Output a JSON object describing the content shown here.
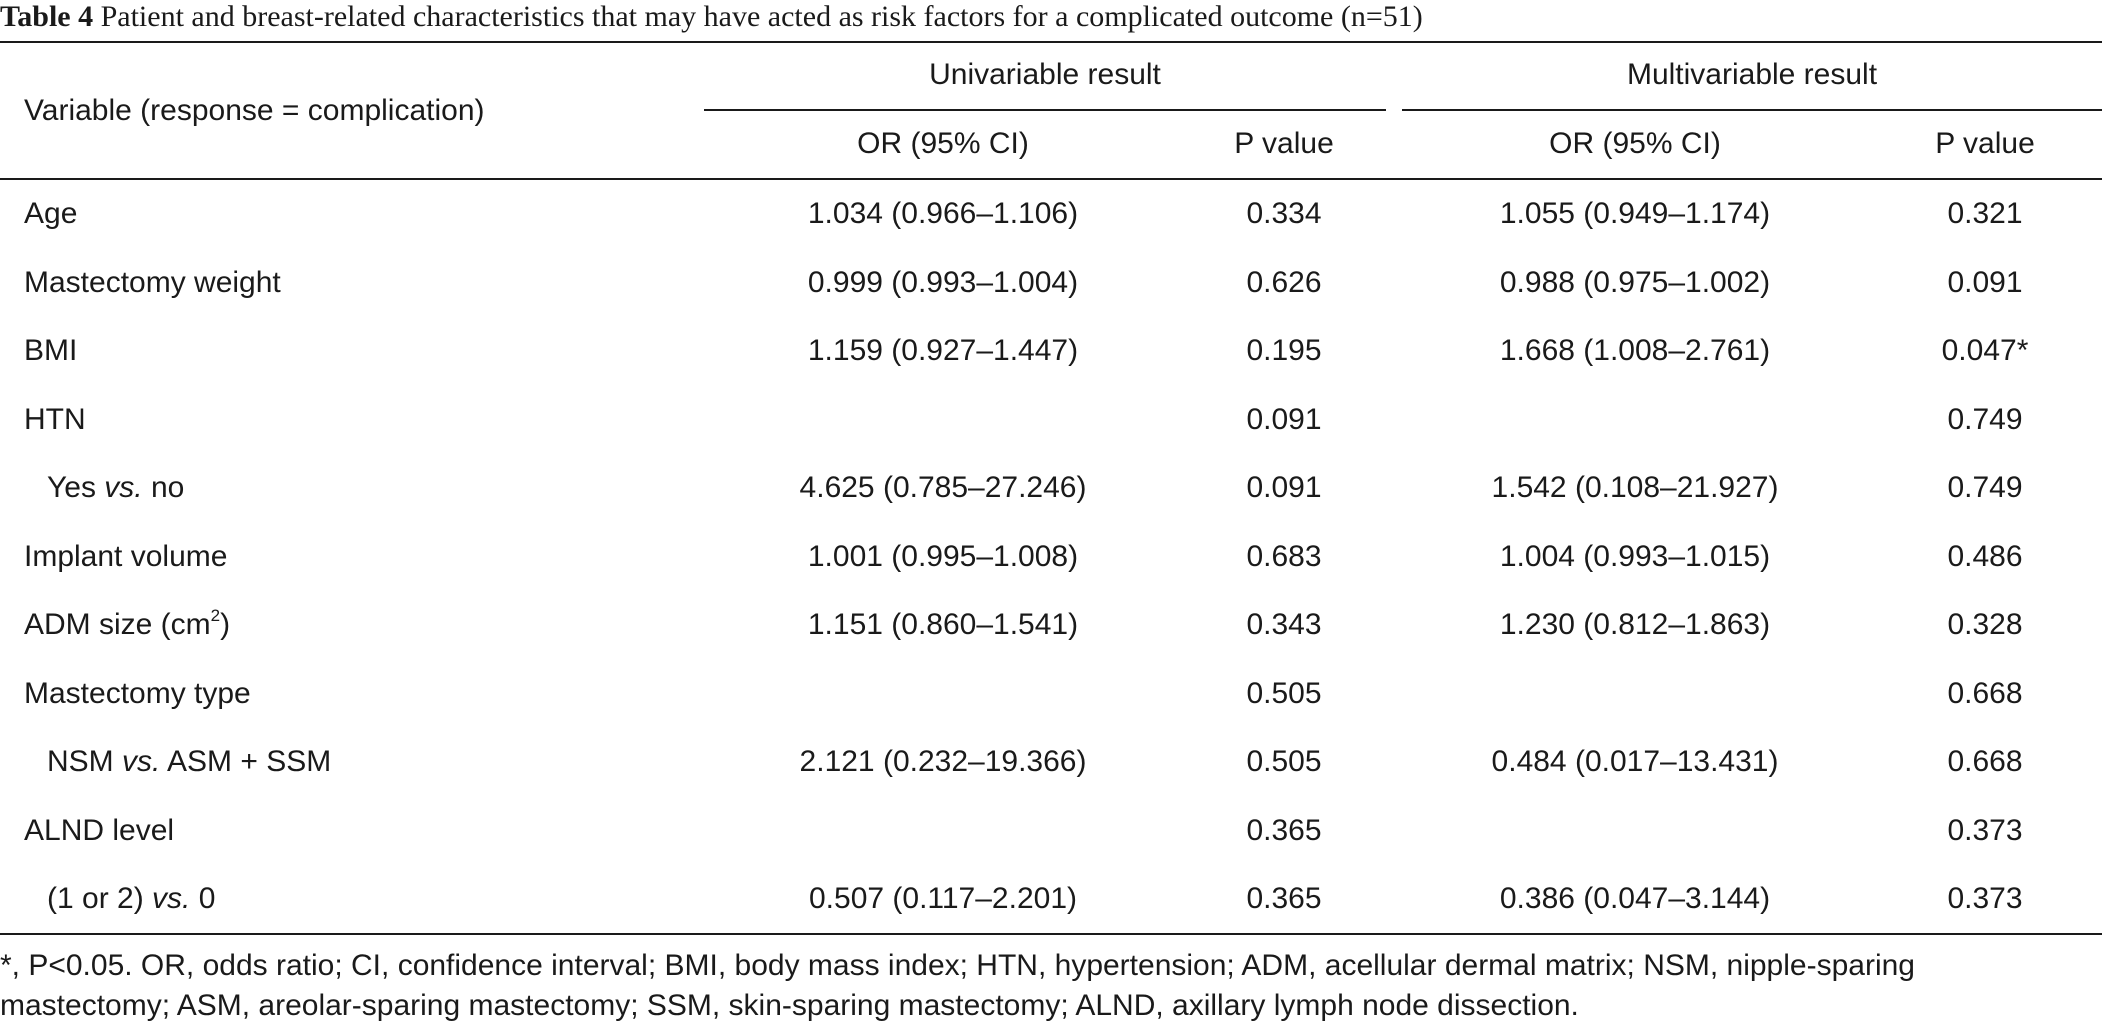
{
  "caption": {
    "label": "Table 4",
    "text": "Patient and breast-related characteristics that may have acted as risk factors for a complicated outcome (n=51)"
  },
  "header": {
    "variable": "Variable (response = complication)",
    "univariable": "Univariable result",
    "multivariable": "Multivariable result",
    "or_label": "OR (95% CI)",
    "p_label": "P value"
  },
  "rows": [
    {
      "label": "Age",
      "uni_or": "1.034 (0.966–1.106)",
      "uni_p": "0.334",
      "multi_or": "1.055 (0.949–1.174)",
      "multi_p": "0.321"
    },
    {
      "label": "Mastectomy weight",
      "uni_or": "0.999 (0.993–1.004)",
      "uni_p": "0.626",
      "multi_or": "0.988 (0.975–1.002)",
      "multi_p": "0.091"
    },
    {
      "label": "BMI",
      "uni_or": "1.159 (0.927–1.447)",
      "uni_p": "0.195",
      "multi_or": "1.668 (1.008–2.761)",
      "multi_p": "0.047*"
    },
    {
      "label": "HTN",
      "uni_or": "",
      "uni_p": "0.091",
      "multi_or": "",
      "multi_p": "0.749"
    },
    {
      "label_pre": "Yes ",
      "label_em": "vs.",
      "label_post": " no",
      "uni_or": "4.625 (0.785–27.246)",
      "uni_p": "0.091",
      "multi_or": "1.542 (0.108–21.927)",
      "multi_p": "0.749"
    },
    {
      "label": "Implant volume",
      "uni_or": "1.001 (0.995–1.008)",
      "uni_p": "0.683",
      "multi_or": "1.004 (0.993–1.015)",
      "multi_p": "0.486"
    },
    {
      "label": "ADM size (cm",
      "label_sup": "2",
      "label_post": ")",
      "uni_or": "1.151 (0.860–1.541)",
      "uni_p": "0.343",
      "multi_or": "1.230 (0.812–1.863)",
      "multi_p": "0.328"
    },
    {
      "label": "Mastectomy type",
      "uni_or": "",
      "uni_p": "0.505",
      "multi_or": "",
      "multi_p": "0.668"
    },
    {
      "label_pre": "NSM ",
      "label_em": "vs.",
      "label_post": " ASM + SSM",
      "uni_or": "2.121 (0.232–19.366)",
      "uni_p": "0.505",
      "multi_or": "0.484 (0.017–13.431)",
      "multi_p": "0.668"
    },
    {
      "label": "ALND level",
      "uni_or": "",
      "uni_p": "0.365",
      "multi_or": "",
      "multi_p": "0.373"
    },
    {
      "label_pre": "(1 or 2) ",
      "label_em": "vs.",
      "label_post": " 0",
      "uni_or": "0.507 (0.117–2.201)",
      "uni_p": "0.365",
      "multi_or": "0.386 (0.047–3.144)",
      "multi_p": "0.373"
    }
  ],
  "footnote": "*, P<0.05. OR, odds ratio; CI, confidence interval; BMI, body mass index; HTN, hypertension; ADM, acellular dermal matrix; NSM, nipple-sparing mastectomy; ASM, areolar-sparing mastectomy; SSM, skin-sparing mastectomy; ALND, axillary lymph node dissection."
}
